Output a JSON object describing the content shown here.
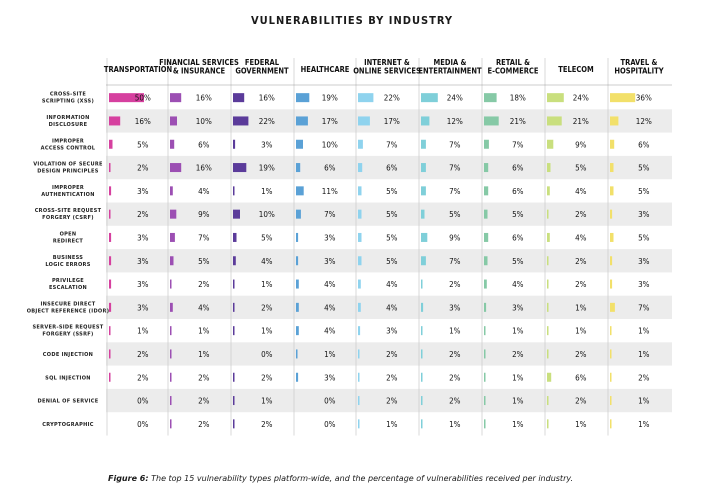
{
  "chart_data": {
    "type": "table",
    "title": "VULNERABILITIES BY INDUSTRY",
    "columns": [
      {
        "label": [
          "TRANSPORTATION"
        ],
        "color": "#d6409f"
      },
      {
        "label": [
          "FINANCIAL SERVICES",
          "& INSURANCE"
        ],
        "color": "#9c4fb3"
      },
      {
        "label": [
          "FEDERAL",
          "GOVERNMENT"
        ],
        "color": "#5b3b9a"
      },
      {
        "label": [
          "HEALTHCARE"
        ],
        "color": "#5aa1d6"
      },
      {
        "label": [
          "INTERNET &",
          "ONLINE SERVICES"
        ],
        "color": "#8fd3ee"
      },
      {
        "label": [
          "MEDIA &",
          "ENTERTAINMENT"
        ],
        "color": "#7fcfd9"
      },
      {
        "label": [
          "RETAIL &",
          "E-COMMERCE"
        ],
        "color": "#86c9a6"
      },
      {
        "label": [
          "TELECOM"
        ],
        "color": "#c9df7e"
      },
      {
        "label": [
          "TRAVEL &",
          "HOSPITALITY"
        ],
        "color": "#f2e06a"
      }
    ],
    "rows": [
      {
        "label": [
          "CROSS-SITE",
          "SCRIPTING (XSS)"
        ],
        "values": [
          50,
          16,
          16,
          19,
          22,
          24,
          18,
          24,
          36
        ]
      },
      {
        "label": [
          "INFORMATION",
          "DISCLOSURE"
        ],
        "values": [
          16,
          10,
          22,
          17,
          17,
          12,
          21,
          21,
          12
        ]
      },
      {
        "label": [
          "IMPROPER",
          "ACCESS CONTROL"
        ],
        "values": [
          5,
          6,
          3,
          10,
          7,
          7,
          7,
          9,
          6
        ]
      },
      {
        "label": [
          "VIOLATION OF SECURE",
          "DESIGN PRINCIPLES"
        ],
        "values": [
          2,
          16,
          19,
          6,
          6,
          7,
          6,
          5,
          5
        ]
      },
      {
        "label": [
          "IMPROPER",
          "AUTHENTICATION"
        ],
        "values": [
          3,
          4,
          1,
          11,
          5,
          7,
          6,
          4,
          5
        ]
      },
      {
        "label": [
          "CROSS-SITE REQUEST",
          "FORGERY (CSRF)"
        ],
        "values": [
          2,
          9,
          10,
          7,
          5,
          5,
          5,
          2,
          3
        ]
      },
      {
        "label": [
          "OPEN",
          "REDIRECT"
        ],
        "values": [
          3,
          7,
          5,
          3,
          5,
          9,
          6,
          4,
          5
        ]
      },
      {
        "label": [
          "BUSINESS",
          "LOGIC ERRORS"
        ],
        "values": [
          3,
          5,
          4,
          3,
          5,
          7,
          5,
          2,
          3
        ]
      },
      {
        "label": [
          "PRIVILEGE",
          "ESCALATION"
        ],
        "values": [
          3,
          2,
          1,
          4,
          4,
          2,
          4,
          2,
          3
        ]
      },
      {
        "label": [
          "INSECURE DIRECT",
          "OBJECT REFERENCE (IDOR)"
        ],
        "values": [
          3,
          4,
          2,
          4,
          4,
          3,
          3,
          1,
          7
        ]
      },
      {
        "label": [
          "SERVER-SIDE REQUEST",
          "FORGERY (SSRF)"
        ],
        "values": [
          1,
          1,
          1,
          4,
          3,
          1,
          1,
          1,
          1
        ]
      },
      {
        "label": [
          "CODE INJECTION"
        ],
        "values": [
          2,
          1,
          0,
          1,
          2,
          2,
          2,
          2,
          1
        ]
      },
      {
        "label": [
          "SQL INJECTION"
        ],
        "values": [
          2,
          2,
          2,
          3,
          2,
          2,
          1,
          6,
          2
        ]
      },
      {
        "label": [
          "DENIAL OF SERVICE"
        ],
        "values": [
          0,
          2,
          1,
          0,
          2,
          2,
          1,
          2,
          1
        ]
      },
      {
        "label": [
          "CRYPTOGRAPHIC"
        ],
        "values": [
          0,
          2,
          2,
          0,
          1,
          1,
          1,
          1,
          1
        ]
      }
    ],
    "value_suffix": "%",
    "stripe_color": "#ececec"
  },
  "caption": {
    "figure": "Figure 6:",
    "text": " The top 15 vulnerability types platform-wide, and the percentage of vulnerabilities received per industry."
  }
}
